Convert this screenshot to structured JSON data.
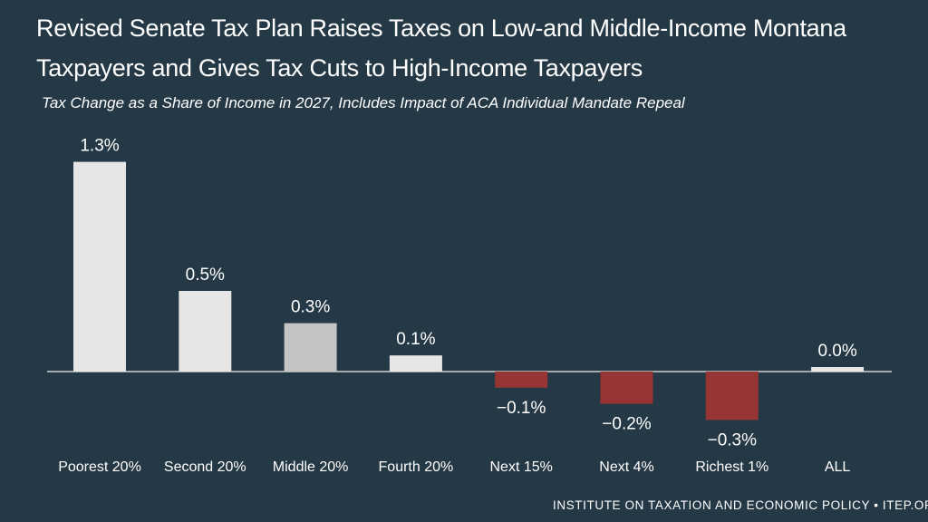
{
  "chart_data": {
    "type": "bar",
    "title_lines": [
      "Revised Senate Tax Plan Raises Taxes on Low-and Middle-Income Montana",
      "Taxpayers and Gives Tax Cuts to High-Income Taxpayers"
    ],
    "subtitle": "Tax Change as a Share of Income in 2027, Includes Impact of ACA Individual Mandate Repeal",
    "categories": [
      "Poorest 20%",
      "Second 20%",
      "Middle 20%",
      "Fourth 20%",
      "Next 15%",
      "Next 4%",
      "Richest 1%",
      "ALL"
    ],
    "values": [
      1.3,
      0.5,
      0.3,
      0.1,
      -0.1,
      -0.2,
      -0.3,
      0.0
    ],
    "value_labels": [
      "1.3%",
      "0.5%",
      "0.3%",
      "0.1%",
      "−0.1%",
      "−0.2%",
      "−0.3%",
      "0.0%"
    ],
    "ylim": [
      -0.3,
      1.3
    ],
    "xlabel": "",
    "ylabel": "",
    "grid": false,
    "colors": {
      "background": "#243845",
      "positive": "#e6e6e6",
      "middle": "#c4c4c4",
      "negative": "#963533",
      "baseline": "#d0d0d0",
      "text": "#ffffff"
    }
  },
  "source": "INSTITUTE ON TAXATION AND ECONOMIC POLICY • ITEP.ORG"
}
